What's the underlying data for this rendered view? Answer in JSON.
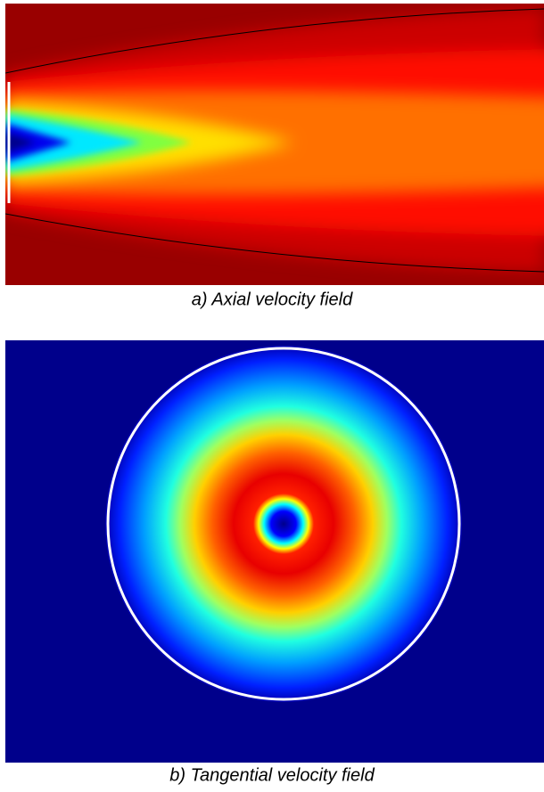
{
  "panels": [
    {
      "caption": "a) Axial velocity field"
    },
    {
      "caption": "b) Tangential velocity field"
    }
  ]
}
